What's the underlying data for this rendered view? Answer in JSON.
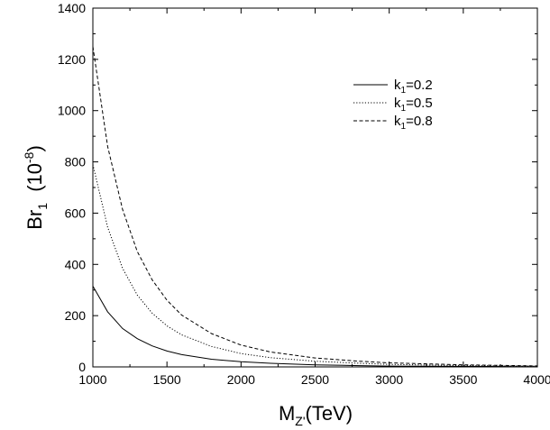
{
  "chart_data": {
    "type": "line",
    "title": "",
    "xlabel": {
      "main": "M",
      "sub": "Z'",
      "unit": "(TeV)"
    },
    "ylabel": {
      "main": "Br",
      "sub": "1",
      "unit_pre": "(10",
      "unit_sup": "-8",
      "unit_post": ")"
    },
    "xlim": [
      1000,
      4000
    ],
    "ylim": [
      0,
      1400
    ],
    "xticks": [
      1000,
      1500,
      2000,
      2500,
      3000,
      3500,
      4000
    ],
    "yticks": [
      0,
      200,
      400,
      600,
      800,
      1000,
      1200,
      1400
    ],
    "grid": false,
    "legend_position": "top-right",
    "x": [
      1000,
      1100,
      1200,
      1300,
      1400,
      1500,
      1600,
      1800,
      2000,
      2200,
      2500,
      2800,
      3000,
      3500,
      4000
    ],
    "series": [
      {
        "name": {
          "main": "k",
          "sub": "1",
          "rest": "=0.2"
        },
        "line_style": "solid",
        "values": [
          315,
          215,
          150,
          110,
          82,
          62,
          48,
          30,
          20,
          14,
          8,
          5,
          3,
          2,
          1
        ]
      },
      {
        "name": {
          "main": "k",
          "sub": "1",
          "rest": "=0.5"
        },
        "line_style": "dotted",
        "values": [
          790,
          545,
          385,
          280,
          210,
          160,
          125,
          80,
          52,
          36,
          22,
          14,
          10,
          5,
          3
        ]
      },
      {
        "name": {
          "main": "k",
          "sub": "1",
          "rest": "=0.8"
        },
        "line_style": "dashed",
        "values": [
          1250,
          860,
          615,
          450,
          340,
          260,
          202,
          130,
          85,
          58,
          35,
          22,
          16,
          8,
          4
        ]
      }
    ]
  }
}
